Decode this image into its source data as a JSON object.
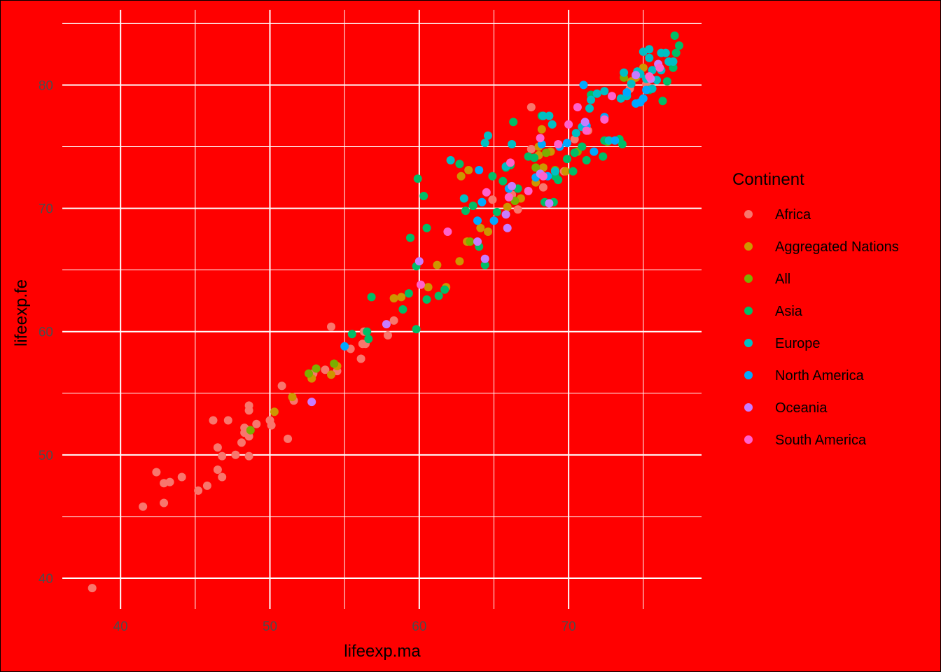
{
  "chart_data": {
    "type": "scatter",
    "xlabel": "lifeexp.ma",
    "ylabel": "lifeexp.fe",
    "xlim": [
      36.1,
      78.9
    ],
    "ylim": [
      37.5,
      86.1
    ],
    "x_ticks": [
      40,
      50,
      60,
      70
    ],
    "y_ticks": [
      40,
      50,
      60,
      70,
      80
    ],
    "grid": true,
    "background": "#ff0000",
    "grid_color": "#ffffff",
    "legend": {
      "title": "Continent",
      "placement": "right",
      "entries": [
        "Africa",
        "Aggregated Nations",
        "All",
        "Asia",
        "Europe",
        "North America",
        "Oceania",
        "South America"
      ]
    },
    "colors": {
      "Africa": "#F8766D",
      "Aggregated Nations": "#CD9600",
      "All": "#7CAE00",
      "Asia": "#00BE67",
      "Europe": "#00BFC4",
      "North America": "#00A9FF",
      "Oceania": "#C77CFF",
      "South America": "#FF61CC"
    },
    "series": [
      {
        "name": "Africa",
        "points": [
          [
            38.1,
            39.2
          ],
          [
            41.5,
            45.8
          ],
          [
            42.9,
            46.1
          ],
          [
            42.9,
            47.7
          ],
          [
            43.3,
            47.8
          ],
          [
            42.4,
            48.6
          ],
          [
            44.1,
            48.2
          ],
          [
            45.2,
            47.1
          ],
          [
            45.8,
            47.5
          ],
          [
            46.8,
            48.2
          ],
          [
            46.5,
            48.8
          ],
          [
            46.8,
            49.9
          ],
          [
            47.7,
            50.0
          ],
          [
            46.5,
            50.6
          ],
          [
            46.2,
            52.8
          ],
          [
            47.2,
            52.8
          ],
          [
            48.6,
            49.9
          ],
          [
            48.1,
            51.0
          ],
          [
            48.3,
            51.8
          ],
          [
            48.3,
            52.2
          ],
          [
            48.6,
            51.5
          ],
          [
            48.6,
            52.0
          ],
          [
            49.1,
            52.5
          ],
          [
            48.6,
            53.6
          ],
          [
            48.6,
            54.0
          ],
          [
            50.0,
            52.8
          ],
          [
            50.1,
            52.4
          ],
          [
            50.8,
            55.6
          ],
          [
            51.2,
            51.3
          ],
          [
            51.6,
            54.4
          ],
          [
            52.9,
            56.6
          ],
          [
            53.7,
            56.9
          ],
          [
            54.5,
            56.8
          ],
          [
            55.4,
            58.6
          ],
          [
            56.1,
            57.8
          ],
          [
            56.2,
            59.0
          ],
          [
            56.4,
            59.0
          ],
          [
            56.3,
            60.0
          ],
          [
            57.9,
            59.7
          ],
          [
            58.3,
            60.9
          ],
          [
            54.1,
            60.4
          ],
          [
            67.5,
            78.2
          ],
          [
            66.6,
            69.9
          ],
          [
            64.9,
            70.7
          ],
          [
            66.2,
            71.1
          ],
          [
            67.5,
            74.8
          ],
          [
            68.3,
            71.7
          ],
          [
            70.4,
            75.6
          ],
          [
            74.1,
            79.7
          ],
          [
            75.2,
            80.1
          ],
          [
            71.3,
            76.3
          ],
          [
            69.7,
            73.0
          ]
        ]
      },
      {
        "name": "Aggregated Nations",
        "points": [
          [
            50.3,
            53.5
          ],
          [
            51.5,
            54.7
          ],
          [
            52.8,
            56.2
          ],
          [
            54.1,
            56.5
          ],
          [
            54.5,
            57.2
          ],
          [
            58.3,
            62.7
          ],
          [
            58.8,
            62.8
          ],
          [
            60.6,
            63.6
          ],
          [
            61.2,
            65.4
          ],
          [
            61.8,
            63.6
          ],
          [
            62.7,
            65.7
          ],
          [
            63.2,
            67.3
          ],
          [
            62.8,
            72.6
          ],
          [
            63.3,
            73.1
          ],
          [
            64.1,
            68.4
          ],
          [
            64.6,
            68.1
          ],
          [
            65.9,
            70.1
          ],
          [
            66.8,
            70.8
          ],
          [
            67.8,
            72.1
          ],
          [
            68.3,
            73.3
          ],
          [
            68.0,
            74.3
          ],
          [
            68.2,
            76.4
          ],
          [
            68.0,
            75.0
          ],
          [
            68.8,
            74.6
          ],
          [
            69.8,
            73.0
          ],
          [
            74.2,
            80.3
          ],
          [
            74.5,
            80.6
          ],
          [
            75.0,
            81.4
          ]
        ]
      },
      {
        "name": "All",
        "points": [
          [
            48.7,
            52.0
          ],
          [
            52.6,
            56.6
          ],
          [
            53.1,
            57.0
          ],
          [
            54.3,
            57.4
          ],
          [
            63.4,
            67.3
          ],
          [
            66.4,
            70.6
          ],
          [
            67.8,
            73.3
          ],
          [
            68.5,
            74.5
          ],
          [
            69.1,
            73.1
          ],
          [
            70.6,
            74.6
          ],
          [
            72.6,
            75.4
          ],
          [
            73.7,
            80.6
          ]
        ]
      },
      {
        "name": "Asia",
        "points": [
          [
            55.5,
            59.8
          ],
          [
            56.5,
            60.0
          ],
          [
            56.6,
            59.4
          ],
          [
            56.8,
            62.8
          ],
          [
            58.9,
            61.8
          ],
          [
            59.3,
            63.1
          ],
          [
            59.4,
            67.6
          ],
          [
            59.8,
            65.3
          ],
          [
            59.9,
            72.4
          ],
          [
            59.8,
            60.2
          ],
          [
            60.3,
            71.0
          ],
          [
            60.5,
            62.6
          ],
          [
            60.5,
            68.4
          ],
          [
            61.3,
            62.9
          ],
          [
            61.7,
            63.4
          ],
          [
            62.7,
            73.6
          ],
          [
            63.1,
            69.8
          ],
          [
            63.6,
            70.2
          ],
          [
            64.0,
            66.9
          ],
          [
            64.4,
            65.4
          ],
          [
            64.9,
            72.6
          ],
          [
            65.2,
            69.7
          ],
          [
            65.6,
            72.2
          ],
          [
            65.8,
            73.3
          ],
          [
            66.1,
            73.5
          ],
          [
            66.3,
            77.0
          ],
          [
            66.6,
            71.6
          ],
          [
            67.3,
            74.2
          ],
          [
            67.7,
            74.1
          ],
          [
            68.2,
            77.5
          ],
          [
            68.4,
            70.5
          ],
          [
            69.0,
            70.5
          ],
          [
            69.1,
            72.6
          ],
          [
            69.3,
            72.3
          ],
          [
            69.9,
            74.0
          ],
          [
            70.3,
            73.0
          ],
          [
            70.4,
            74.5
          ],
          [
            70.9,
            75.0
          ],
          [
            71.2,
            73.9
          ],
          [
            71.5,
            79.2
          ],
          [
            72.3,
            74.2
          ],
          [
            72.4,
            75.5
          ],
          [
            73.4,
            75.6
          ],
          [
            73.6,
            75.2
          ],
          [
            75.4,
            79.6
          ],
          [
            76.3,
            78.7
          ],
          [
            76.6,
            80.3
          ],
          [
            77.1,
            84.0
          ],
          [
            77.2,
            82.6
          ],
          [
            77.4,
            83.2
          ],
          [
            77.0,
            81.4
          ]
        ]
      },
      {
        "name": "Europe",
        "points": [
          [
            62.1,
            73.9
          ],
          [
            63.0,
            70.8
          ],
          [
            64.6,
            75.9
          ],
          [
            64.4,
            75.3
          ],
          [
            65.8,
            73.4
          ],
          [
            66.2,
            75.2
          ],
          [
            68.3,
            77.5
          ],
          [
            68.7,
            77.5
          ],
          [
            68.9,
            76.8
          ],
          [
            69.1,
            73.0
          ],
          [
            70.5,
            76.1
          ],
          [
            70.9,
            76.6
          ],
          [
            71.4,
            78.1
          ],
          [
            71.5,
            78.8
          ],
          [
            71.9,
            79.3
          ],
          [
            72.4,
            79.5
          ],
          [
            72.7,
            75.5
          ],
          [
            73.5,
            78.9
          ],
          [
            73.7,
            81.0
          ],
          [
            73.9,
            79.1
          ],
          [
            74.2,
            80.1
          ],
          [
            74.6,
            81.1
          ],
          [
            74.8,
            80.9
          ],
          [
            75.0,
            82.7
          ],
          [
            75.2,
            80.5
          ],
          [
            75.4,
            82.9
          ],
          [
            75.6,
            81.2
          ],
          [
            75.6,
            79.7
          ],
          [
            75.9,
            80.4
          ],
          [
            76.2,
            82.6
          ],
          [
            76.5,
            82.6
          ],
          [
            76.7,
            81.9
          ],
          [
            77.0,
            81.9
          ],
          [
            76.2,
            81.2
          ],
          [
            75.4,
            82.2
          ]
        ]
      },
      {
        "name": "North America",
        "points": [
          [
            55.0,
            58.8
          ],
          [
            63.9,
            69.0
          ],
          [
            64.2,
            70.5
          ],
          [
            64.0,
            73.1
          ],
          [
            65.0,
            69.0
          ],
          [
            66.0,
            71.6
          ],
          [
            67.8,
            72.5
          ],
          [
            68.2,
            75.2
          ],
          [
            68.6,
            72.6
          ],
          [
            69.4,
            75.0
          ],
          [
            69.9,
            75.3
          ],
          [
            71.0,
            80.0
          ],
          [
            71.2,
            76.7
          ],
          [
            71.7,
            74.6
          ],
          [
            72.4,
            77.4
          ],
          [
            73.1,
            75.5
          ],
          [
            73.9,
            79.4
          ],
          [
            74.5,
            78.5
          ],
          [
            74.8,
            78.6
          ],
          [
            75.0,
            78.9
          ],
          [
            75.2,
            79.6
          ]
        ]
      },
      {
        "name": "Oceania",
        "points": [
          [
            52.8,
            54.3
          ],
          [
            57.8,
            60.6
          ],
          [
            60.0,
            65.7
          ],
          [
            63.9,
            67.3
          ],
          [
            64.4,
            65.9
          ],
          [
            65.8,
            69.5
          ],
          [
            65.9,
            68.4
          ],
          [
            66.2,
            71.8
          ],
          [
            68.1,
            72.8
          ],
          [
            68.7,
            70.4
          ],
          [
            71.1,
            77.0
          ],
          [
            74.5,
            80.8
          ],
          [
            76.0,
            81.7
          ],
          [
            75.5,
            80.5
          ]
        ]
      },
      {
        "name": "South America",
        "points": [
          [
            60.1,
            63.8
          ],
          [
            61.9,
            68.1
          ],
          [
            64.5,
            71.3
          ],
          [
            66.0,
            70.9
          ],
          [
            66.1,
            73.7
          ],
          [
            67.3,
            71.4
          ],
          [
            68.1,
            75.7
          ],
          [
            68.3,
            72.6
          ],
          [
            69.3,
            75.2
          ],
          [
            70.0,
            76.8
          ],
          [
            70.6,
            78.2
          ],
          [
            71.2,
            76.3
          ],
          [
            72.4,
            77.2
          ],
          [
            72.9,
            79.1
          ],
          [
            76.1,
            81.4
          ],
          [
            75.4,
            80.7
          ]
        ]
      }
    ]
  }
}
